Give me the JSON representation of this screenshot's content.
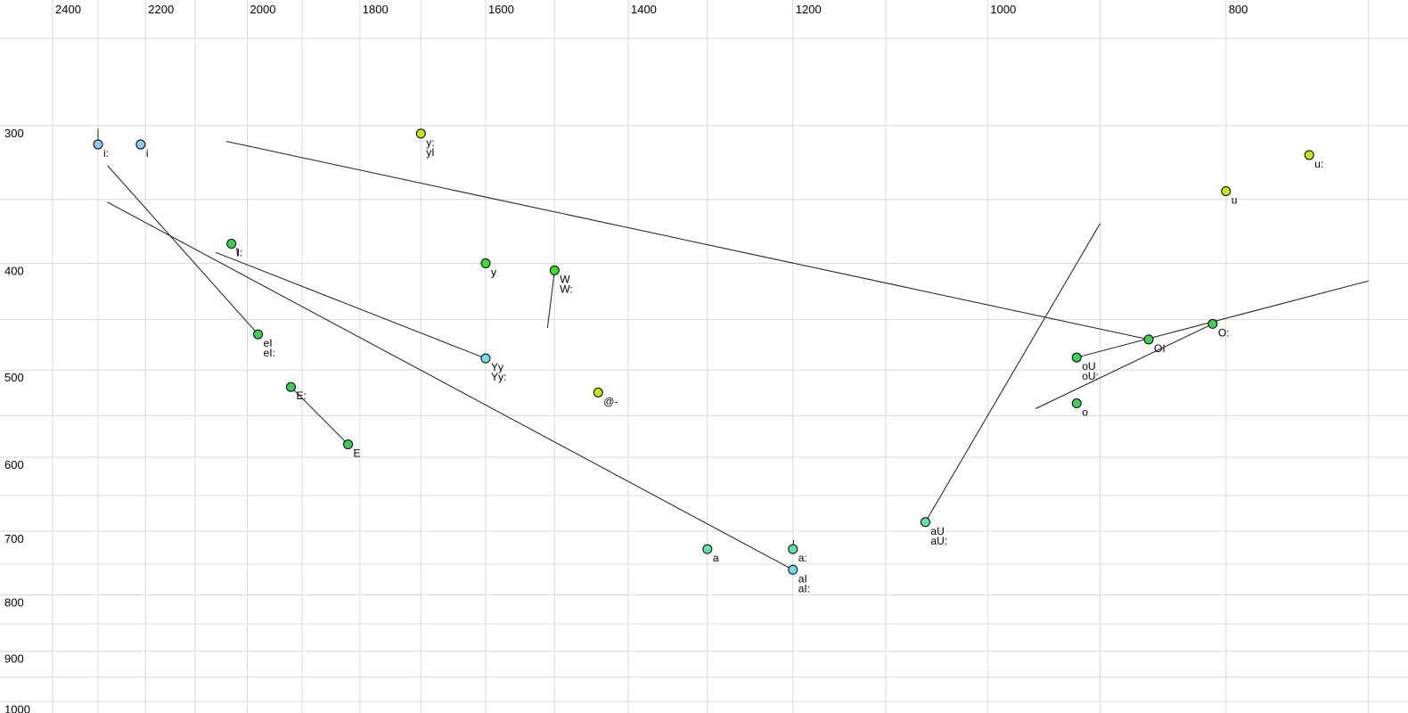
{
  "chart_data": {
    "type": "scatter",
    "title": "",
    "description": "Vowel formant chart: F2 (Hz, log scale, decreasing to the right, labels on top) vs F1 (Hz, log scale, increasing downward, labels on left). Points are vowel tokens labeled with X-SAMPA-like symbols; thin black lines connect diphthong trajectories.",
    "x_axis": {
      "unit": "Hz",
      "scale": "log",
      "direction": "decreasing-right",
      "labels_position": "top",
      "tick_labels": [
        2400,
        2200,
        2000,
        1800,
        1600,
        1400,
        1200,
        1000,
        800
      ],
      "gridlines_hz": {
        "min": 700,
        "max": 2400,
        "step": 100
      }
    },
    "y_axis": {
      "unit": "Hz",
      "scale": "log",
      "direction": "increasing-down",
      "labels_position": "left",
      "tick_labels": [
        300,
        400,
        500,
        600,
        700,
        800,
        900,
        1000
      ],
      "gridlines_hz": {
        "min": 250,
        "max": 1000,
        "step": 50
      }
    },
    "palette": {
      "skyblue": "#8ec9f0",
      "cyan": "#70dee8",
      "green": "#3ecf5a",
      "lime": "#3edd2e",
      "spring": "#63e3a5",
      "yellow": "#c8e41c",
      "grid": "#d9d9d9",
      "line": "#1a1a1a",
      "point_stroke": "#000000"
    },
    "points": [
      {
        "name": "i-long",
        "f2": 2300,
        "f1": 312,
        "color": "skyblue",
        "labels": [
          "i:"
        ]
      },
      {
        "name": "i",
        "f2": 2210,
        "f1": 312,
        "color": "skyblue",
        "labels": [
          "i"
        ]
      },
      {
        "name": "I-long",
        "f2": 2030,
        "f1": 384,
        "color": "green",
        "labels": [
          "I:"
        ]
      },
      {
        "name": "y-long-yI",
        "f2": 1700,
        "f1": 305,
        "color": "yellow",
        "labels": [
          "y:",
          "yI"
        ]
      },
      {
        "name": "eI",
        "f2": 1980,
        "f1": 464,
        "color": "green",
        "labels": [
          "eI",
          "eI:"
        ]
      },
      {
        "name": "E-long",
        "f2": 1920,
        "f1": 518,
        "color": "green",
        "labels": [
          "E:"
        ]
      },
      {
        "name": "E",
        "f2": 1820,
        "f1": 584,
        "color": "green",
        "labels": [
          "E"
        ]
      },
      {
        "name": "y",
        "f2": 1600,
        "f1": 400,
        "color": "lime",
        "labels": [
          "y"
        ]
      },
      {
        "name": "W",
        "f2": 1500,
        "f1": 406,
        "color": "lime",
        "labels": [
          "W",
          "W:"
        ]
      },
      {
        "name": "Yy",
        "f2": 1600,
        "f1": 488,
        "color": "cyan",
        "labels": [
          "Yy",
          "Yy:"
        ]
      },
      {
        "name": "schwa",
        "f2": 1440,
        "f1": 524,
        "color": "yellow",
        "labels": [
          "@-"
        ]
      },
      {
        "name": "a",
        "f2": 1300,
        "f1": 727,
        "color": "spring",
        "labels": [
          "a"
        ]
      },
      {
        "name": "a-long",
        "f2": 1200,
        "f1": 727,
        "color": "spring",
        "labels": [
          "a:"
        ]
      },
      {
        "name": "aI",
        "f2": 1200,
        "f1": 759,
        "color": "cyan",
        "labels": [
          "aI",
          "aI:"
        ]
      },
      {
        "name": "aU",
        "f2": 1060,
        "f1": 687,
        "color": "spring",
        "labels": [
          "aU",
          "aU:"
        ]
      },
      {
        "name": "oU",
        "f2": 920,
        "f1": 487,
        "color": "green",
        "labels": [
          "oU",
          "oU:"
        ]
      },
      {
        "name": "o",
        "f2": 920,
        "f1": 536,
        "color": "green",
        "labels": [
          "o"
        ]
      },
      {
        "name": "OI",
        "f2": 860,
        "f1": 469,
        "color": "green",
        "labels": [
          "OI"
        ]
      },
      {
        "name": "O-long",
        "f2": 810,
        "f1": 454,
        "color": "green",
        "labels": [
          "O:"
        ]
      },
      {
        "name": "u",
        "f2": 800,
        "f1": 344,
        "color": "yellow",
        "labels": [
          "u"
        ]
      },
      {
        "name": "u-long",
        "f2": 740,
        "f1": 319,
        "color": "yellow",
        "labels": [
          "u:"
        ]
      }
    ],
    "segments": [
      {
        "name": "tick-above-i-long",
        "from": [
          2300,
          302
        ],
        "to": [
          2300,
          311
        ]
      },
      {
        "name": "tick-below-I-long",
        "from": [
          2020,
          387
        ],
        "to": [
          2018,
          394
        ]
      },
      {
        "name": "tick-above-a-long",
        "from": [
          1199,
          713
        ],
        "to": [
          1200,
          725
        ]
      },
      {
        "name": "line-to-eI",
        "from": [
          2280,
          326
        ],
        "to": [
          1980,
          464
        ]
      },
      {
        "name": "line-to-aI",
        "from": [
          2280,
          352
        ],
        "to": [
          1200,
          759
        ]
      },
      {
        "name": "line-to-Yy",
        "from": [
          2060,
          391
        ],
        "to": [
          1600,
          488
        ]
      },
      {
        "name": "line-to-OI",
        "from": [
          2040,
          310
        ],
        "to": [
          860,
          469
        ]
      },
      {
        "name": "line-below-W",
        "from": [
          1500,
          406
        ],
        "to": [
          1510,
          458
        ]
      },
      {
        "name": "line-E-long-to-E",
        "from": [
          1920,
          518
        ],
        "to": [
          1820,
          584
        ]
      },
      {
        "name": "line-from-aU",
        "from": [
          1060,
          687
        ],
        "to": [
          900,
          368
        ]
      },
      {
        "name": "line-to-O-long",
        "from": [
          956,
          542
        ],
        "to": [
          810,
          454
        ]
      },
      {
        "name": "line-through-oU-O-long",
        "from": [
          920,
          487
        ],
        "to": [
          700,
          415
        ]
      }
    ]
  }
}
